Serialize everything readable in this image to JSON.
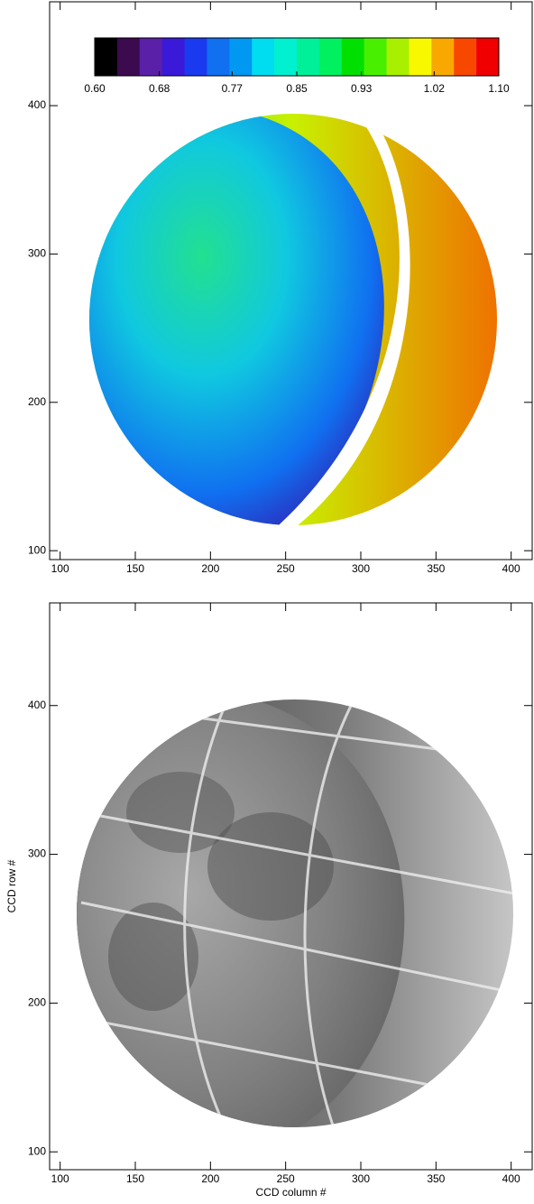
{
  "chart_data": [
    {
      "type": "image",
      "xlim": [
        93,
        414
      ],
      "ylim": [
        94,
        470
      ],
      "xticks": [
        100,
        150,
        200,
        250,
        300,
        350,
        400
      ],
      "yticks": [
        100,
        200,
        300,
        400
      ],
      "colorbar": {
        "clim": [
          0.6,
          1.1
        ],
        "ticks": [
          {
            "value": 0.6,
            "label": "0.60"
          },
          0.68,
          0.77,
          0.85,
          0.93,
          1.02,
          {
            "value": 1.1,
            "label": "1.10"
          }
        ],
        "colors": [
          "#000000",
          "#3c0a4e",
          "#5a20a8",
          "#3a1ad8",
          "#1a3af0",
          "#1070f0",
          "#0098f0",
          "#00dcf0",
          "#00f0d0",
          "#00f09a",
          "#00f060",
          "#00e000",
          "#48f000",
          "#a8f000",
          "#f8f800",
          "#f8a800",
          "#f84800",
          "#f00000"
        ]
      }
    },
    {
      "type": "image",
      "xlabel": "CCD column #",
      "ylabel": "CCD row #",
      "xlim": [
        93,
        414
      ],
      "ylim": [
        88,
        469
      ],
      "xticks": [
        100,
        150,
        200,
        250,
        300,
        350,
        400
      ],
      "yticks": [
        100,
        200,
        300,
        400
      ]
    }
  ]
}
